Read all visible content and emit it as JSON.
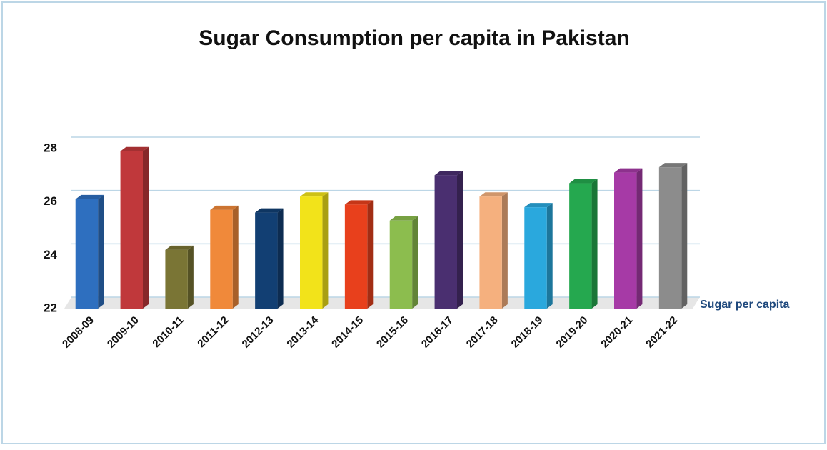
{
  "chart_data": {
    "type": "bar3d",
    "title": "Sugar Consumption per capita in Pakistan",
    "categories": [
      "2008-09",
      "2009-10",
      "2010-11",
      "2011-12",
      "2012-13",
      "2013-14",
      "2014-15",
      "2015-16",
      "2016-17",
      "2017-18",
      "2018-19",
      "2019-20",
      "2020-21",
      "2021-22"
    ],
    "series": [
      {
        "name": "Sugar per capita",
        "color": "#1f497d",
        "values": [
          26.1,
          27.9,
          24.2,
          25.7,
          25.6,
          26.2,
          25.9,
          25.3,
          27.0,
          26.2,
          25.8,
          26.7,
          27.1,
          27.3
        ]
      }
    ],
    "colors": [
      "#2e6fbf",
      "#c0383b",
      "#7a7535",
      "#f0893a",
      "#123f73",
      "#f2e31a",
      "#e8401c",
      "#8cbd4e",
      "#4a2f70",
      "#f5b07e",
      "#2aa8dd",
      "#25a84f",
      "#a63aa6",
      "#8c8c8c"
    ],
    "ylim": [
      22,
      28
    ],
    "yticks": [
      22,
      24,
      26,
      28
    ],
    "grid": true,
    "legend": "right"
  }
}
